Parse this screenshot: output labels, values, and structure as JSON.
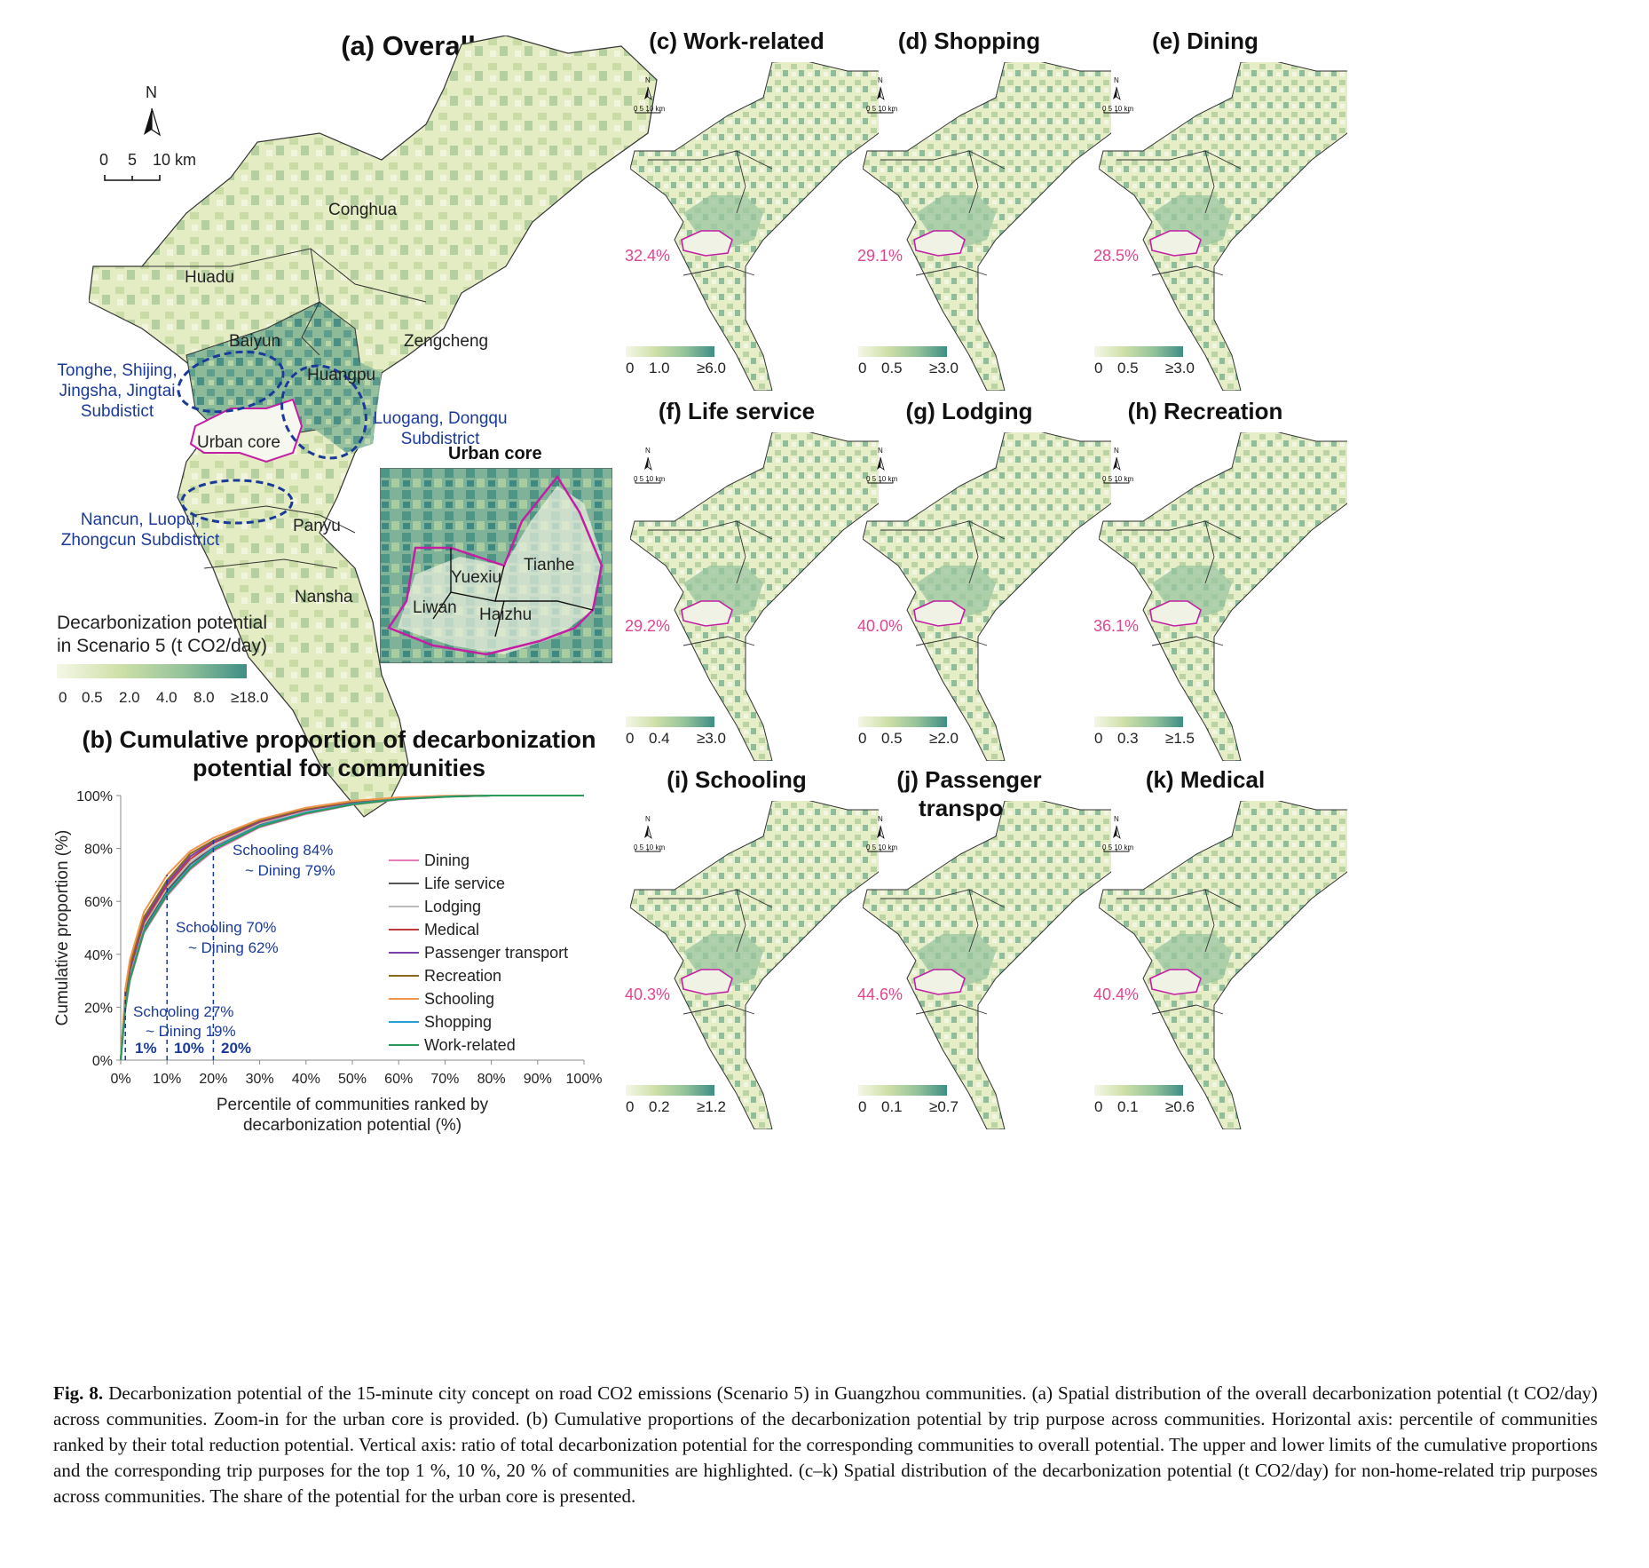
{
  "panel_a": {
    "title": "(a) Overall",
    "north": "N",
    "scale_labels": [
      "0",
      "5",
      "10 km"
    ],
    "districts": [
      "Conghua",
      "Huadu",
      "Baiyun",
      "Zengcheng",
      "Huangpu",
      "Urban core",
      "Panyu",
      "Nansha"
    ],
    "blue_labels": [
      "Tonghe, Shijing,\nJingsha, Jingtai\nSubdistict",
      "Luogang, Dongqu\nSubdistrict",
      "Nancun, Luopu,\nZhongcun Subdistrict"
    ],
    "inset_title": "Urban core",
    "inset_districts": [
      "Yuexiu",
      "Tianhe",
      "Liwan",
      "Haizhu"
    ],
    "legend_title_1": "Decarbonization potential",
    "legend_title_2": "in Scenario 5 (t CO2/day)",
    "legend_ticks": [
      "0",
      "0.5",
      "2.0",
      "4.0",
      "8.0",
      "≥18.0"
    ]
  },
  "small_maps": [
    {
      "title": "(c) Work-related",
      "pct": "32.4%",
      "ticks": [
        "0",
        "1.0",
        "≥6.0"
      ]
    },
    {
      "title": "(d) Shopping",
      "pct": "29.1%",
      "ticks": [
        "0",
        "0.5",
        "≥3.0"
      ]
    },
    {
      "title": "(e) Dining",
      "pct": "28.5%",
      "ticks": [
        "0",
        "0.5",
        "≥3.0"
      ]
    },
    {
      "title": "(f) Life service",
      "pct": "29.2%",
      "ticks": [
        "0",
        "0.4",
        "≥3.0"
      ]
    },
    {
      "title": "(g) Lodging",
      "pct": "40.0%",
      "ticks": [
        "0",
        "0.5",
        "≥2.0"
      ]
    },
    {
      "title": "(h) Recreation",
      "pct": "36.1%",
      "ticks": [
        "0",
        "0.3",
        "≥1.5"
      ]
    },
    {
      "title": "(i) Schooling",
      "pct": "40.3%",
      "ticks": [
        "0",
        "0.2",
        "≥1.2"
      ]
    },
    {
      "title": "(j) Passenger\ntransport",
      "pct": "44.6%",
      "ticks": [
        "0",
        "0.1",
        "≥0.7"
      ]
    },
    {
      "title": "(k) Medical",
      "pct": "40.4%",
      "ticks": [
        "0",
        "0.1",
        "≥0.6"
      ]
    }
  ],
  "small_map_north": "N",
  "small_map_scale": "0 5 10 km",
  "panel_b": {
    "title_1": "(b) Cumulative proportion of decarbonization",
    "title_2": "potential for communities"
  },
  "chart_data": {
    "type": "line",
    "xlabel": "Percentile of communities ranked by\ndecarbonization potential (%)",
    "ylabel": "Cumulative proportion (%)",
    "xlim": [
      0,
      100
    ],
    "ylim": [
      0,
      100
    ],
    "x_ticks": [
      "0%",
      "10%",
      "20%",
      "30%",
      "40%",
      "50%",
      "60%",
      "70%",
      "80%",
      "90%",
      "100%"
    ],
    "y_ticks": [
      "0%",
      "20%",
      "40%",
      "60%",
      "80%",
      "100%"
    ],
    "x": [
      0,
      1,
      2,
      5,
      10,
      15,
      20,
      30,
      40,
      50,
      60,
      70,
      80,
      90,
      100
    ],
    "series": [
      {
        "name": "Dining",
        "color": "#e87ab8",
        "values": [
          0,
          19,
          30,
          48,
          62,
          72,
          79,
          88,
          93,
          96.5,
          98.5,
          99.5,
          100,
          100,
          100
        ]
      },
      {
        "name": "Life service",
        "color": "#555555",
        "values": [
          0,
          21,
          32,
          50,
          64,
          74,
          80.5,
          89,
          94,
          97,
          98.8,
          99.6,
          100,
          100,
          100
        ]
      },
      {
        "name": "Lodging",
        "color": "#bbbbbb",
        "values": [
          0,
          22,
          33,
          51,
          65,
          75,
          81,
          89.5,
          94.2,
          97.2,
          99,
          99.7,
          100,
          100,
          100
        ]
      },
      {
        "name": "Medical",
        "color": "#c0393b",
        "values": [
          0,
          23,
          34,
          52,
          66,
          76,
          82,
          90,
          94.6,
          97.4,
          99,
          99.7,
          100,
          100,
          100
        ]
      },
      {
        "name": "Passenger transport",
        "color": "#7a3fa8",
        "values": [
          0,
          24,
          35,
          53,
          67,
          77,
          82.5,
          90.3,
          94.8,
          97.5,
          99.1,
          99.8,
          100,
          100,
          100
        ]
      },
      {
        "name": "Recreation",
        "color": "#8a6a1a",
        "values": [
          0,
          25,
          36,
          54,
          68,
          78,
          83,
          90.6,
          95,
          97.7,
          99.2,
          99.8,
          100,
          100,
          100
        ]
      },
      {
        "name": "Schooling",
        "color": "#f0954d",
        "values": [
          0,
          27,
          38,
          56,
          70,
          79,
          84,
          91,
          95.4,
          98,
          99.3,
          99.9,
          100,
          100,
          100
        ]
      },
      {
        "name": "Shopping",
        "color": "#2a9fd6",
        "values": [
          0,
          20,
          31,
          49,
          63,
          73,
          80,
          88.6,
          93.6,
          96.8,
          98.7,
          99.6,
          100,
          100,
          100
        ]
      },
      {
        "name": "Work-related",
        "color": "#2a9a5a",
        "values": [
          0,
          19.5,
          30.5,
          48.5,
          62.5,
          72.5,
          79.5,
          88.3,
          93.3,
          96.6,
          98.6,
          99.5,
          100,
          100,
          100
        ]
      }
    ],
    "annotations": [
      {
        "text_1": "Schooling 27%",
        "text_2": "~ Dining 19%",
        "x": 1
      },
      {
        "text_1": "Schooling 70%",
        "text_2": "~ Dining 62%",
        "x": 10
      },
      {
        "text_1": "Schooling 84%",
        "text_2": "~ Dining 79%",
        "x": 20
      }
    ],
    "percentile_labels": [
      "1%",
      "10%",
      "20%"
    ]
  },
  "caption": {
    "label": "Fig. 8.",
    "text": "Decarbonization potential of the 15-minute city concept on road CO2 emissions (Scenario 5) in Guangzhou communities. (a) Spatial distribution of the overall decarbonization potential (t CO2/day) across communities. Zoom-in for the urban core is provided. (b) Cumulative proportions of the decarbonization potential by trip purpose across communities. Horizontal axis: percentile of communities ranked by their total reduction potential. Vertical axis: ratio of total decarbonization potential for the corresponding communities to overall potential. The upper and lower limits of the cumulative proportions and the corresponding trip purposes for the top 1 %, 10 %, 20 % of communities are highlighted. (c–k) Spatial distribution of the decarbonization potential (t CO2/day) for non-home-related trip purposes across communities. The share of the potential for the urban core is presented."
  }
}
